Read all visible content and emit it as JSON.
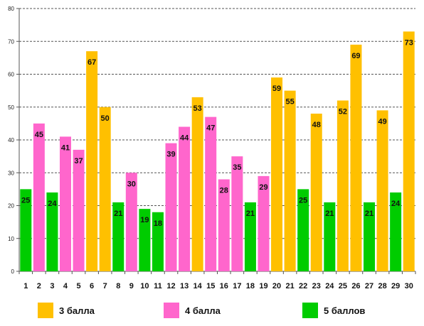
{
  "colors": {
    "3": "#FFC000",
    "4": "#FF66CC",
    "5": "#00CC00"
  },
  "legend": [
    {
      "grade": "3",
      "label": "3 балла"
    },
    {
      "grade": "4",
      "label": "4 балла"
    },
    {
      "grade": "5",
      "label": "5 баллов"
    }
  ],
  "chart_data": {
    "type": "bar",
    "title": "",
    "xlabel": "",
    "ylabel": "",
    "ylim": [
      0,
      80
    ],
    "yticks": [
      0,
      10,
      20,
      30,
      40,
      50,
      60,
      70,
      80
    ],
    "grid": true,
    "legend_position": "bottom",
    "categories": [
      "1",
      "2",
      "3",
      "4",
      "5",
      "6",
      "7",
      "8",
      "9",
      "10",
      "11",
      "12",
      "13",
      "14",
      "15",
      "16",
      "17",
      "18",
      "19",
      "20",
      "21",
      "22",
      "23",
      "24",
      "25",
      "26",
      "27",
      "28",
      "29",
      "30"
    ],
    "values": [
      25,
      45,
      24,
      41,
      37,
      67,
      50,
      21,
      30,
      19,
      18,
      39,
      44,
      53,
      47,
      28,
      35,
      21,
      29,
      59,
      55,
      25,
      48,
      21,
      52,
      69,
      21,
      49,
      24,
      73
    ],
    "grades": [
      "5",
      "4",
      "5",
      "4",
      "4",
      "3",
      "3",
      "5",
      "4",
      "5",
      "5",
      "4",
      "4",
      "3",
      "4",
      "4",
      "4",
      "5",
      "4",
      "3",
      "3",
      "5",
      "3",
      "5",
      "3",
      "3",
      "5",
      "3",
      "5",
      "3"
    ]
  }
}
